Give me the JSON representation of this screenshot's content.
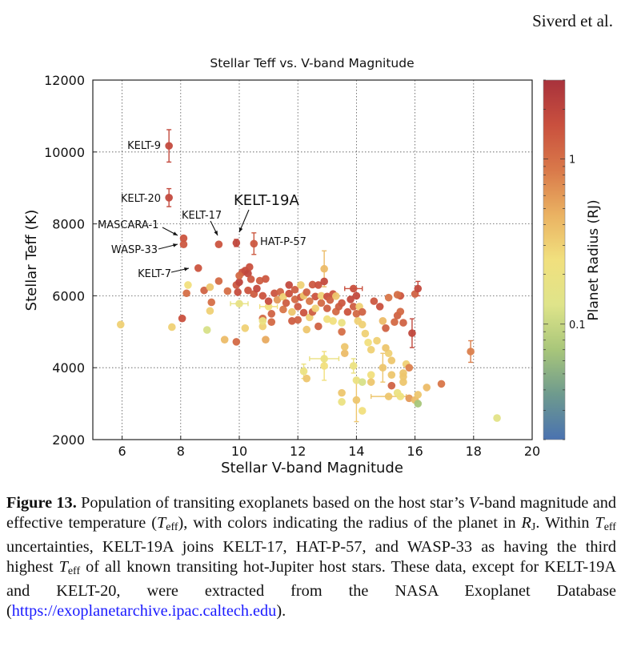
{
  "header": {
    "running_head": "Siverd et al."
  },
  "caption": {
    "label": "Figure 13.",
    "text_1": " Population of transiting exoplanets based on the host star’s ",
    "v": "V",
    "text_2": "-band magnitude and effective temperature (",
    "teff_T": "T",
    "teff_sub": "eff",
    "text_3": "), with colors indicating the radius of the planet in ",
    "rj_R": "R",
    "rj_sub": "J",
    "text_4": ". Within ",
    "text_5": " uncertainties, KELT-19A joins KELT-17, HAT-P-57, and WASP-33 as having the third highest ",
    "text_6": " of all known transiting hot-Jupiter host stars. These data, except for KELT-19A and KELT-20, were extracted from the NASA Exoplanet Database (",
    "link": "https://exoplanetarchive.ipac.caltech.edu",
    "text_7": ")."
  },
  "chart_data": {
    "type": "scatter",
    "title": "Stellar Teff vs. V-band Magnitude",
    "xlabel": "Stellar V-band Magnitude",
    "ylabel": "Stellar Teff (K)",
    "xlim": [
      5,
      20
    ],
    "ylim": [
      2000,
      12000
    ],
    "xticks": [
      6,
      8,
      10,
      12,
      14,
      16,
      18,
      20
    ],
    "yticks": [
      2000,
      4000,
      6000,
      8000,
      10000,
      12000
    ],
    "grid": true,
    "colorbar": {
      "label": "Planet Radius (RJ)",
      "scale": "log",
      "range": [
        0.02,
        3.0
      ],
      "ticks": [
        0.1,
        1
      ],
      "tick_labels": [
        "0.1",
        "1"
      ],
      "colormap": [
        "#4a72b0",
        "#6e9a8e",
        "#a8c67a",
        "#dfe48a",
        "#f1e07e",
        "#eab262",
        "#d9794a",
        "#c9503e",
        "#a8323c"
      ]
    },
    "annotations": [
      {
        "text": "KELT-9",
        "x": 7.6,
        "y": 10170
      },
      {
        "text": "KELT-20",
        "x": 7.6,
        "y": 8730
      },
      {
        "text": "MASCARA-1",
        "x": 8.1,
        "y": 7600
      },
      {
        "text": "WASP-33",
        "x": 8.1,
        "y": 7400
      },
      {
        "text": "KELT-17",
        "x": 9.3,
        "y": 7450
      },
      {
        "text": "KELT-19A",
        "x": 9.9,
        "y": 7500
      },
      {
        "text": "HAT-P-57",
        "x": 10.5,
        "y": 7500
      },
      {
        "text": "KELT-7",
        "x": 8.6,
        "y": 6770
      }
    ],
    "points": [
      {
        "x": 7.6,
        "y": 10170,
        "r": 1.8,
        "ey": 450
      },
      {
        "x": 7.6,
        "y": 8730,
        "r": 1.8,
        "ey": 250
      },
      {
        "x": 8.1,
        "y": 7600,
        "r": 1.5
      },
      {
        "x": 8.1,
        "y": 7430,
        "r": 1.4
      },
      {
        "x": 9.3,
        "y": 7430,
        "r": 1.5
      },
      {
        "x": 9.9,
        "y": 7470,
        "r": 1.9,
        "ey": 100
      },
      {
        "x": 10.5,
        "y": 7450,
        "r": 1.4,
        "ey": 300
      },
      {
        "x": 8.6,
        "y": 6770,
        "r": 1.5
      },
      {
        "x": 5.95,
        "y": 5200,
        "r": 0.3
      },
      {
        "x": 7.7,
        "y": 5130,
        "r": 0.3
      },
      {
        "x": 8.05,
        "y": 5370,
        "r": 1.6
      },
      {
        "x": 8.9,
        "y": 5050,
        "r": 0.12
      },
      {
        "x": 8.2,
        "y": 6070,
        "r": 1.0
      },
      {
        "x": 8.25,
        "y": 6300,
        "r": 0.25
      },
      {
        "x": 8.8,
        "y": 6150,
        "r": 1.2
      },
      {
        "x": 9.0,
        "y": 6240,
        "r": 0.35
      },
      {
        "x": 9.0,
        "y": 5580,
        "r": 0.3
      },
      {
        "x": 9.05,
        "y": 5820,
        "r": 1.0
      },
      {
        "x": 9.5,
        "y": 4780,
        "r": 0.4
      },
      {
        "x": 9.3,
        "y": 6410,
        "r": 1.1
      },
      {
        "x": 9.6,
        "y": 6130,
        "r": 1.0
      },
      {
        "x": 9.9,
        "y": 4720,
        "r": 1.1
      },
      {
        "x": 10.0,
        "y": 5780,
        "r": 0.17,
        "ex": 0.3
      },
      {
        "x": 10.2,
        "y": 5100,
        "r": 0.3
      },
      {
        "x": 9.9,
        "y": 6300,
        "r": 1.4
      },
      {
        "x": 10.0,
        "y": 6380,
        "r": 2.0
      },
      {
        "x": 9.95,
        "y": 6100,
        "r": 1.7
      },
      {
        "x": 10.1,
        "y": 6650,
        "r": 1.5
      },
      {
        "x": 10.2,
        "y": 6700,
        "r": 1.7
      },
      {
        "x": 10.3,
        "y": 6620,
        "r": 1.9
      },
      {
        "x": 10.35,
        "y": 6800,
        "r": 1.6
      },
      {
        "x": 10.0,
        "y": 6560,
        "r": 1.1
      },
      {
        "x": 10.4,
        "y": 6460,
        "r": 1.4
      },
      {
        "x": 10.3,
        "y": 6150,
        "r": 1.5
      },
      {
        "x": 10.5,
        "y": 6050,
        "r": 1.3
      },
      {
        "x": 10.7,
        "y": 6420,
        "r": 1.3
      },
      {
        "x": 10.9,
        "y": 6470,
        "r": 1.4
      },
      {
        "x": 10.6,
        "y": 6200,
        "r": 1.8
      },
      {
        "x": 10.8,
        "y": 6000,
        "r": 1.5
      },
      {
        "x": 10.8,
        "y": 5370,
        "r": 1.1
      },
      {
        "x": 10.8,
        "y": 5150,
        "r": 0.3
      },
      {
        "x": 10.9,
        "y": 4780,
        "r": 0.5
      },
      {
        "x": 10.8,
        "y": 5300,
        "r": 0.2
      },
      {
        "x": 11.0,
        "y": 5700,
        "r": 0.25,
        "ex": 0.3
      },
      {
        "x": 11.1,
        "y": 5500,
        "r": 1.2
      },
      {
        "x": 11.1,
        "y": 5270,
        "r": 1.1
      },
      {
        "x": 11.0,
        "y": 5850,
        "r": 1.7
      },
      {
        "x": 11.2,
        "y": 6070,
        "r": 1.5
      },
      {
        "x": 11.3,
        "y": 5890,
        "r": 0.6
      },
      {
        "x": 11.4,
        "y": 6110,
        "r": 1.2
      },
      {
        "x": 11.5,
        "y": 5970,
        "r": 0.3
      },
      {
        "x": 11.5,
        "y": 5620,
        "r": 0.9
      },
      {
        "x": 11.6,
        "y": 5800,
        "r": 1.3
      },
      {
        "x": 11.7,
        "y": 6060,
        "r": 1.6
      },
      {
        "x": 11.7,
        "y": 6300,
        "r": 1.8
      },
      {
        "x": 11.8,
        "y": 5300,
        "r": 1.3
      },
      {
        "x": 11.8,
        "y": 5550,
        "r": 0.35
      },
      {
        "x": 11.9,
        "y": 5900,
        "r": 1.1
      },
      {
        "x": 11.9,
        "y": 6170,
        "r": 1.3
      },
      {
        "x": 12.0,
        "y": 5700,
        "r": 1.4
      },
      {
        "x": 12.0,
        "y": 5330,
        "r": 1.2
      },
      {
        "x": 12.1,
        "y": 5960,
        "r": 1.5
      },
      {
        "x": 12.1,
        "y": 6300,
        "r": 0.3
      },
      {
        "x": 12.2,
        "y": 6000,
        "r": 0.35
      },
      {
        "x": 12.2,
        "y": 5530,
        "r": 1.5
      },
      {
        "x": 12.3,
        "y": 6100,
        "r": 1.2
      },
      {
        "x": 12.3,
        "y": 5060,
        "r": 0.35
      },
      {
        "x": 12.4,
        "y": 5400,
        "r": 0.3
      },
      {
        "x": 12.4,
        "y": 5850,
        "r": 0.9
      },
      {
        "x": 12.5,
        "y": 5550,
        "r": 1.3
      },
      {
        "x": 12.5,
        "y": 6310,
        "r": 1.4
      },
      {
        "x": 12.6,
        "y": 5980,
        "r": 1.5
      },
      {
        "x": 12.6,
        "y": 5650,
        "r": 0.3
      },
      {
        "x": 12.7,
        "y": 6300,
        "r": 1.6
      },
      {
        "x": 12.7,
        "y": 5150,
        "r": 1.2
      },
      {
        "x": 12.8,
        "y": 5800,
        "r": 1.1
      },
      {
        "x": 12.8,
        "y": 6000,
        "r": 0.3
      },
      {
        "x": 12.9,
        "y": 6750,
        "r": 0.4,
        "ey": 500
      },
      {
        "x": 12.9,
        "y": 6400,
        "r": 1.8
      },
      {
        "x": 13.0,
        "y": 5650,
        "r": 1.3
      },
      {
        "x": 13.0,
        "y": 5980,
        "r": 1.6
      },
      {
        "x": 13.0,
        "y": 5350,
        "r": 0.25
      },
      {
        "x": 13.1,
        "y": 5880,
        "r": 1.2
      },
      {
        "x": 13.2,
        "y": 5300,
        "r": 0.25
      },
      {
        "x": 13.2,
        "y": 6050,
        "r": 1.5
      },
      {
        "x": 13.3,
        "y": 5560,
        "r": 1.1
      },
      {
        "x": 13.3,
        "y": 5990,
        "r": 0.35
      },
      {
        "x": 13.4,
        "y": 5700,
        "r": 1.3
      },
      {
        "x": 13.5,
        "y": 5000,
        "r": 1.0
      },
      {
        "x": 13.5,
        "y": 5250,
        "r": 0.2
      },
      {
        "x": 13.6,
        "y": 4400,
        "r": 0.4
      },
      {
        "x": 13.6,
        "y": 4580,
        "r": 0.35
      },
      {
        "x": 13.5,
        "y": 5800,
        "r": 1.4
      },
      {
        "x": 13.7,
        "y": 5550,
        "r": 1.5
      },
      {
        "x": 13.8,
        "y": 5900,
        "r": 1.8
      },
      {
        "x": 13.9,
        "y": 6200,
        "r": 1.6,
        "ex": 0.3
      },
      {
        "x": 13.9,
        "y": 5700,
        "r": 1.3
      },
      {
        "x": 14.0,
        "y": 6000,
        "r": 1.8
      },
      {
        "x": 14.0,
        "y": 5500,
        "r": 1.1
      },
      {
        "x": 14.05,
        "y": 5300,
        "r": 0.3
      },
      {
        "x": 14.1,
        "y": 5700,
        "r": 0.3
      },
      {
        "x": 14.2,
        "y": 5550,
        "r": 1.2
      },
      {
        "x": 14.2,
        "y": 5200,
        "r": 0.3
      },
      {
        "x": 14.3,
        "y": 4950,
        "r": 0.3
      },
      {
        "x": 14.4,
        "y": 4700,
        "r": 0.25
      },
      {
        "x": 14.5,
        "y": 4500,
        "r": 0.3
      },
      {
        "x": 14.6,
        "y": 5850,
        "r": 1.4
      },
      {
        "x": 14.7,
        "y": 4750,
        "r": 0.3
      },
      {
        "x": 14.8,
        "y": 5700,
        "r": 1.6
      },
      {
        "x": 14.9,
        "y": 5300,
        "r": 0.4
      },
      {
        "x": 15.0,
        "y": 5100,
        "r": 1.2
      },
      {
        "x": 15.1,
        "y": 4400,
        "r": 0.3
      },
      {
        "x": 15.2,
        "y": 4200,
        "r": 0.35
      },
      {
        "x": 15.3,
        "y": 5270,
        "r": 1.1
      },
      {
        "x": 15.4,
        "y": 5450,
        "r": 1.2
      },
      {
        "x": 15.5,
        "y": 6000,
        "r": 1.5
      },
      {
        "x": 15.5,
        "y": 5560,
        "r": 1.1
      },
      {
        "x": 15.6,
        "y": 5250,
        "r": 1.2
      },
      {
        "x": 15.9,
        "y": 4960,
        "r": 1.9,
        "ey": 400
      },
      {
        "x": 16.0,
        "y": 6050,
        "r": 1.2
      },
      {
        "x": 16.1,
        "y": 6200,
        "r": 1.8,
        "ey": 200
      },
      {
        "x": 15.4,
        "y": 6030,
        "r": 1.0
      },
      {
        "x": 15.1,
        "y": 5950,
        "r": 0.9
      },
      {
        "x": 12.9,
        "y": 4250,
        "r": 0.2,
        "ex": 0.5
      },
      {
        "x": 12.9,
        "y": 4050,
        "r": 0.25,
        "ey": 400
      },
      {
        "x": 12.2,
        "y": 3900,
        "r": 0.2,
        "ey": 200
      },
      {
        "x": 12.3,
        "y": 3700,
        "r": 0.35
      },
      {
        "x": 13.5,
        "y": 3300,
        "r": 0.35
      },
      {
        "x": 13.5,
        "y": 3050,
        "r": 0.2
      },
      {
        "x": 13.9,
        "y": 4050,
        "r": 0.2,
        "ey": 200
      },
      {
        "x": 14.0,
        "y": 3650,
        "r": 0.2
      },
      {
        "x": 14.0,
        "y": 3100,
        "r": 0.35,
        "ey": 600
      },
      {
        "x": 14.2,
        "y": 3600,
        "r": 0.12
      },
      {
        "x": 14.2,
        "y": 2800,
        "r": 0.25
      },
      {
        "x": 14.5,
        "y": 3800,
        "r": 0.25
      },
      {
        "x": 14.5,
        "y": 3600,
        "r": 0.35
      },
      {
        "x": 14.9,
        "y": 4000,
        "r": 0.35,
        "ey": 400
      },
      {
        "x": 15.0,
        "y": 4550,
        "r": 0.35
      },
      {
        "x": 15.1,
        "y": 3200,
        "r": 0.35,
        "ex": 0.6
      },
      {
        "x": 15.2,
        "y": 3800,
        "r": 0.35
      },
      {
        "x": 15.2,
        "y": 3500,
        "r": 1.2
      },
      {
        "x": 15.4,
        "y": 3300,
        "r": 0.2
      },
      {
        "x": 15.5,
        "y": 3200,
        "r": 0.22
      },
      {
        "x": 15.6,
        "y": 3600,
        "r": 0.35
      },
      {
        "x": 15.6,
        "y": 3750,
        "r": 0.35
      },
      {
        "x": 15.6,
        "y": 3850,
        "r": 0.35
      },
      {
        "x": 15.7,
        "y": 4100,
        "r": 0.3
      },
      {
        "x": 15.8,
        "y": 3150,
        "r": 0.6
      },
      {
        "x": 15.8,
        "y": 4000,
        "r": 0.8
      },
      {
        "x": 16.0,
        "y": 3100,
        "r": 0.4
      },
      {
        "x": 16.1,
        "y": 3250,
        "r": 0.35
      },
      {
        "x": 16.1,
        "y": 3000,
        "r": 0.07
      },
      {
        "x": 16.4,
        "y": 3450,
        "r": 0.4
      },
      {
        "x": 16.9,
        "y": 3550,
        "r": 0.9
      },
      {
        "x": 17.9,
        "y": 4450,
        "r": 0.8,
        "ey": 300
      },
      {
        "x": 18.8,
        "y": 2600,
        "r": 0.15
      }
    ]
  }
}
